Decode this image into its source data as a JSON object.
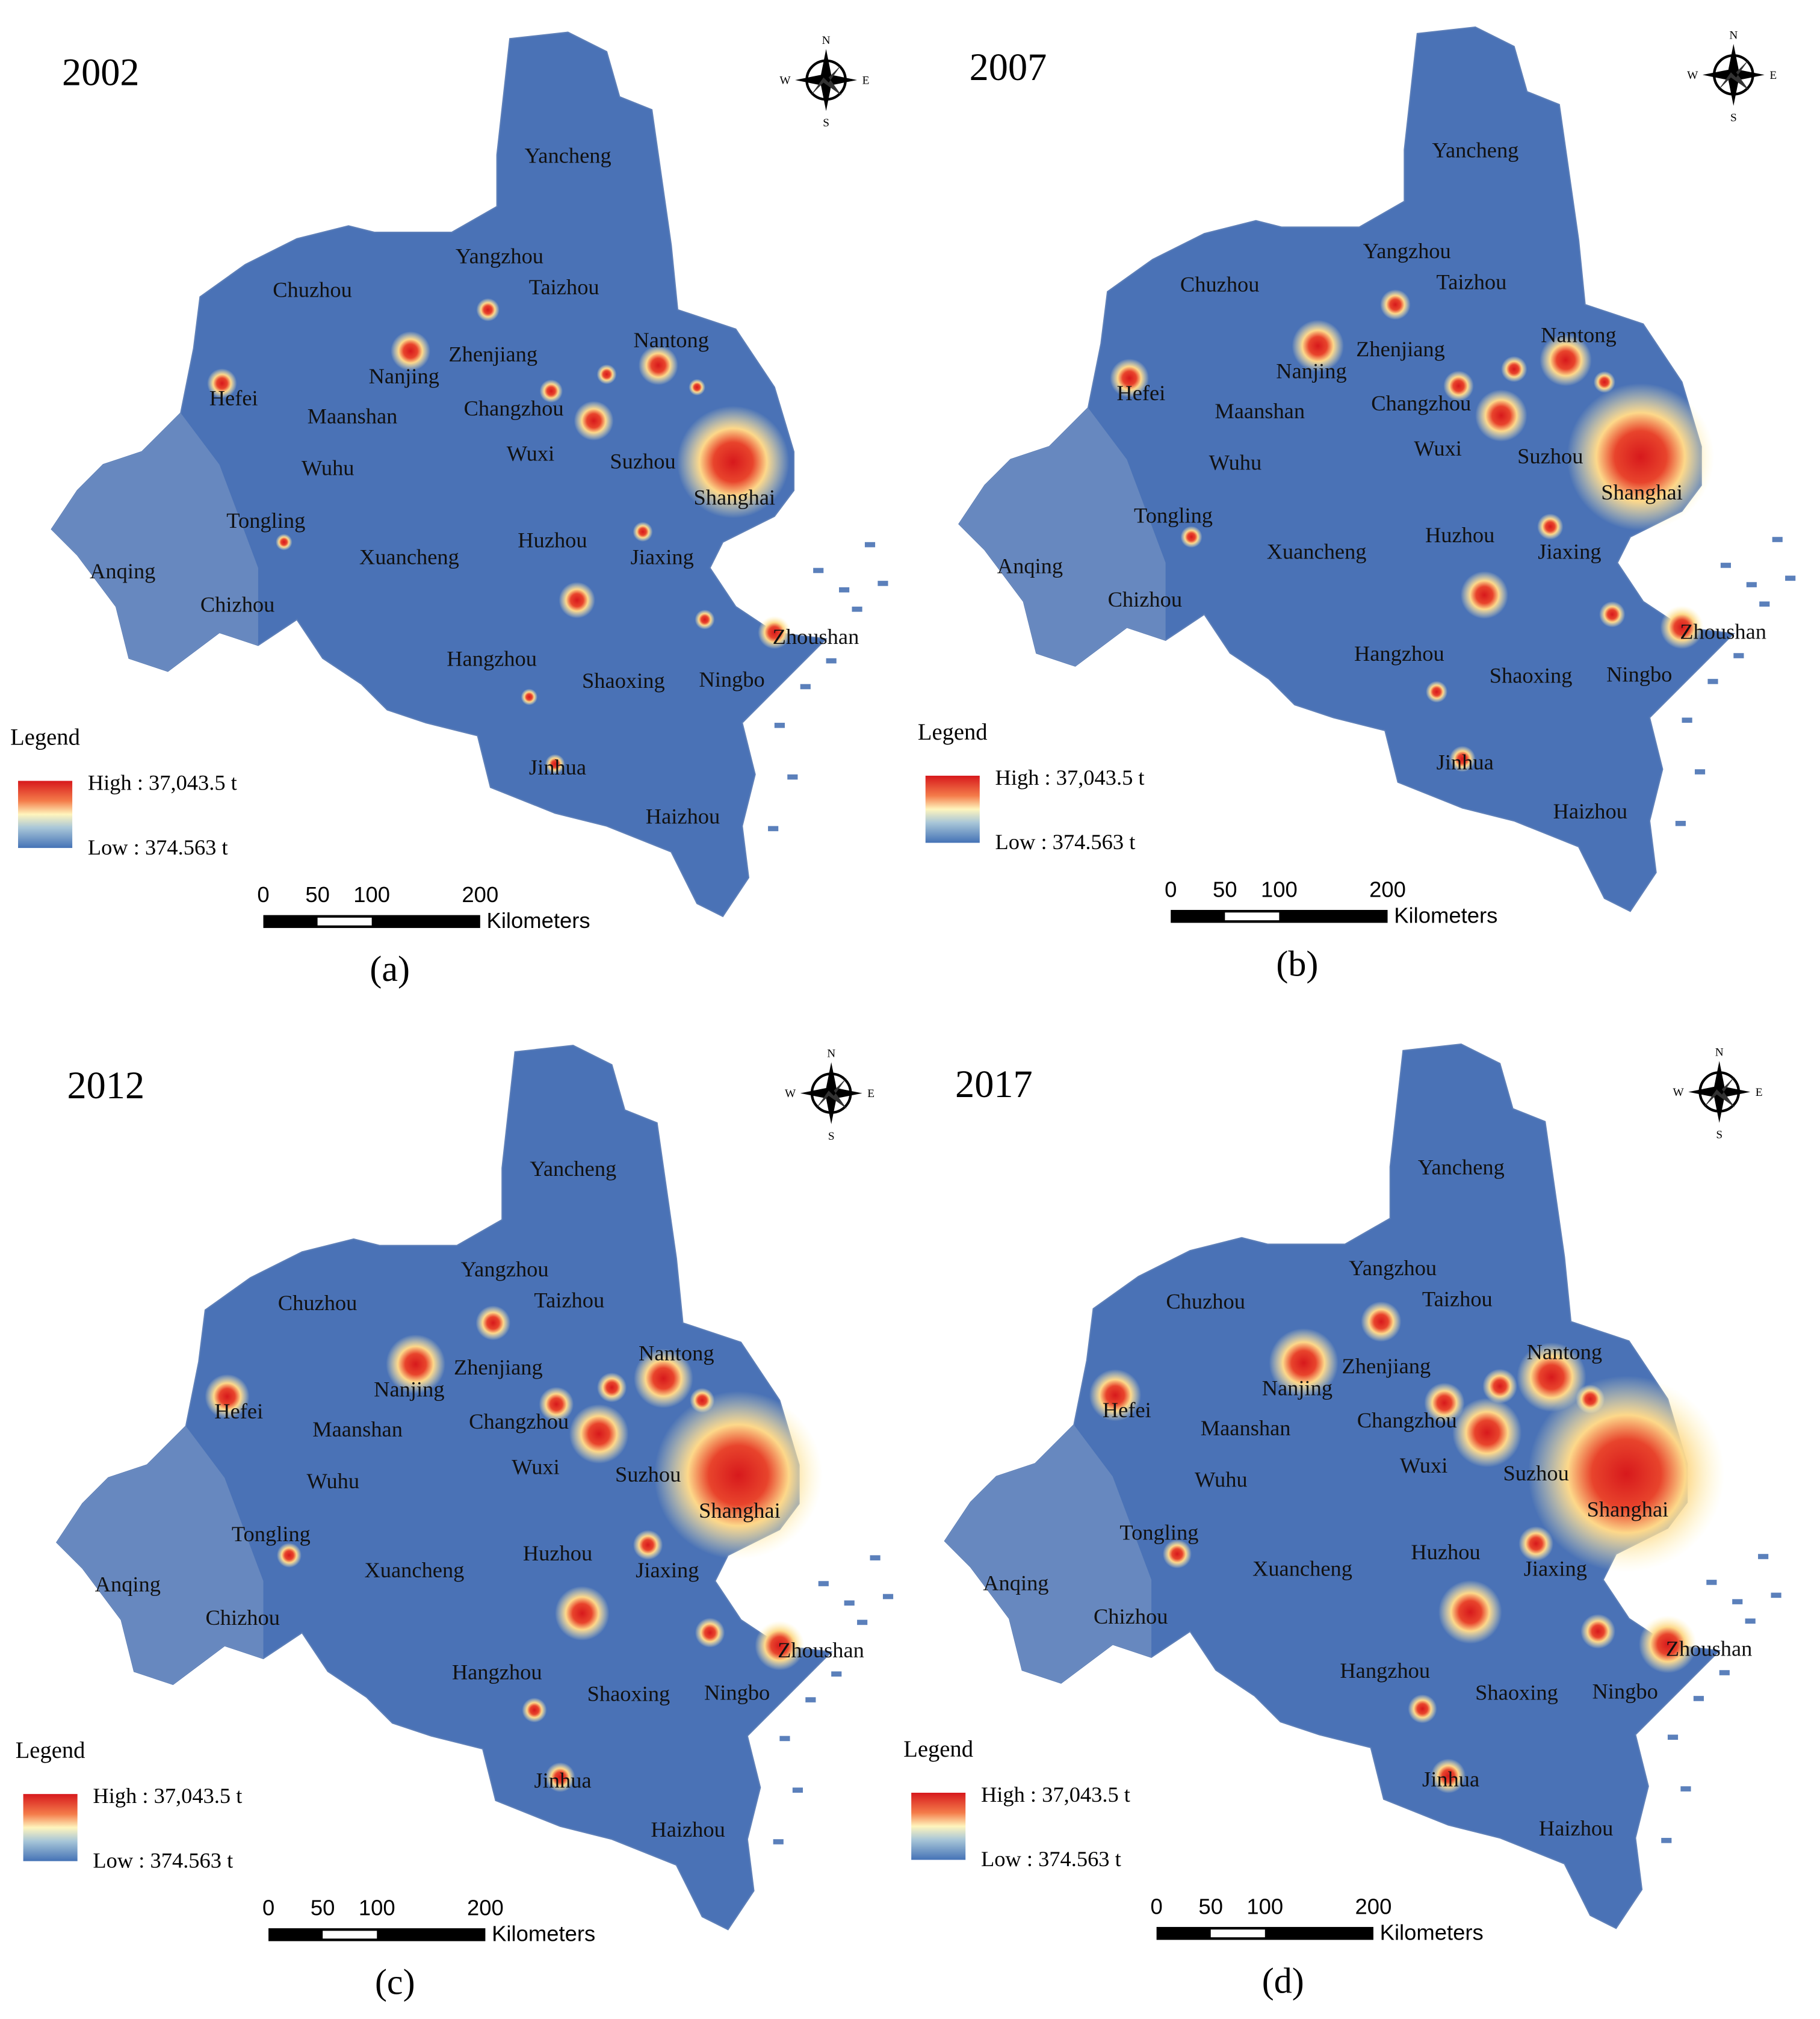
{
  "panels": [
    {
      "year": "2002",
      "caption": "(a)",
      "compass": {
        "n": "N",
        "e": "E",
        "s": "S",
        "w": "W"
      },
      "cities": [
        "Yancheng",
        "Yangzhou",
        "Taizhou",
        "Chuzhou",
        "Nantong",
        "Zhenjiang",
        "Nanjing",
        "Hefei",
        "Changzhou",
        "Maanshan",
        "Wuxi",
        "Suzhou",
        "Shanghai",
        "Wuhu",
        "Tongling",
        "Huzhou",
        "Jiaxing",
        "Anqing",
        "Xuancheng",
        "Chizhou",
        "Zhoushan",
        "Hangzhou",
        "Shaoxing",
        "Ningbo",
        "Jinhua",
        "Haizhou"
      ],
      "legend": {
        "title": "Legend",
        "high": "High : 37,043.5 t",
        "low": "Low : 374.563 t"
      },
      "scale": {
        "ticks": [
          0,
          50,
          100,
          200
        ],
        "unit": "Kilometers"
      }
    },
    {
      "year": "2007",
      "caption": "(b)",
      "compass": {
        "n": "N",
        "e": "E",
        "s": "S",
        "w": "W"
      },
      "cities": [
        "Yancheng",
        "Yangzhou",
        "Taizhou",
        "Chuzhou",
        "Nantong",
        "Zhenjiang",
        "Nanjing",
        "Hefei",
        "Changzhou",
        "Maanshan",
        "Wuxi",
        "Suzhou",
        "Shanghai",
        "Wuhu",
        "Tongling",
        "Huzhou",
        "Jiaxing",
        "Anqing",
        "Xuancheng",
        "Chizhou",
        "Zhoushan",
        "Hangzhou",
        "Shaoxing",
        "Ningbo",
        "Jinhua",
        "Haizhou"
      ],
      "legend": {
        "title": "Legend",
        "high": "High : 37,043.5 t",
        "low": "Low : 374.563 t"
      },
      "scale": {
        "ticks": [
          0,
          50,
          100,
          200
        ],
        "unit": "Kilometers"
      }
    },
    {
      "year": "2012",
      "caption": "(c)",
      "compass": {
        "n": "N",
        "e": "E",
        "s": "S",
        "w": "W"
      },
      "cities": [
        "Yancheng",
        "Yangzhou",
        "Taizhou",
        "Chuzhou",
        "Nantong",
        "Zhenjiang",
        "Nanjing",
        "Hefei",
        "Changzhou",
        "Maanshan",
        "Wuxi",
        "Suzhou",
        "Shanghai",
        "Wuhu",
        "Tongling",
        "Huzhou",
        "Jiaxing",
        "Anqing",
        "Xuancheng",
        "Chizhou",
        "Zhoushan",
        "Hangzhou",
        "Shaoxing",
        "Ningbo",
        "Jinhua",
        "Haizhou"
      ],
      "legend": {
        "title": "Legend",
        "high": "High : 37,043.5 t",
        "low": "Low : 374.563 t"
      },
      "scale": {
        "ticks": [
          0,
          50,
          100,
          200
        ],
        "unit": "Kilometers"
      }
    },
    {
      "year": "2017",
      "caption": "(d)",
      "compass": {
        "n": "N",
        "e": "E",
        "s": "S",
        "w": "W"
      },
      "cities": [
        "Yancheng",
        "Yangzhou",
        "Taizhou",
        "Chuzhou",
        "Nantong",
        "Zhenjiang",
        "Nanjing",
        "Hefei",
        "Changzhou",
        "Maanshan",
        "Wuxi",
        "Suzhou",
        "Shanghai",
        "Wuhu",
        "Tongling",
        "Huzhou",
        "Jiaxing",
        "Anqing",
        "Xuancheng",
        "Chizhou",
        "Zhoushan",
        "Hangzhou",
        "Shaoxing",
        "Ningbo",
        "Jinhua",
        "Haizhou"
      ],
      "legend": {
        "title": "Legend",
        "high": "High : 37,043.5 t",
        "low": "Low : 374.563 t"
      },
      "scale": {
        "ticks": [
          0,
          50,
          100,
          200
        ],
        "unit": "Kilometers"
      }
    }
  ]
}
